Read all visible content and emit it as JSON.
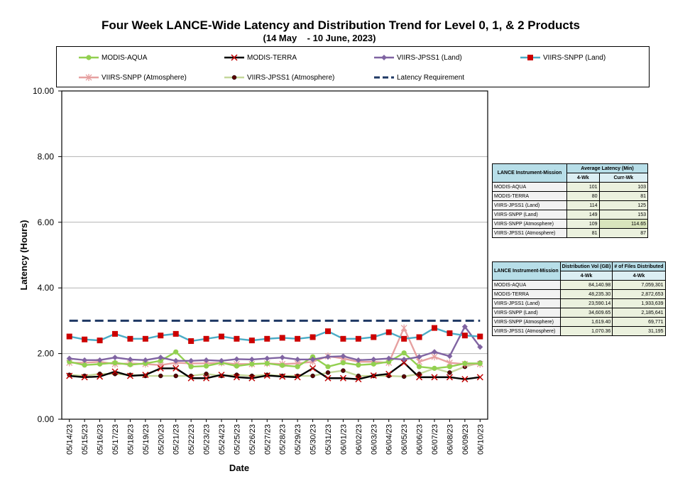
{
  "chart_data": {
    "type": "line",
    "title": "Four Week LANCE-Wide Latency and Distribution Trend for Level 0, 1, & 2 Products",
    "subtitle": "(14 May    - 10 June, 2023)",
    "xlabel": "Date",
    "ylabel": "Latency (Hours)",
    "ylim": [
      0,
      10
    ],
    "yticks": [
      "0.00",
      "2.00",
      "4.00",
      "6.00",
      "8.00",
      "10.00"
    ],
    "grid": "horizontal",
    "legend_position": "top",
    "categories": [
      "05/14/23",
      "05/15/23",
      "05/16/23",
      "05/17/23",
      "05/18/23",
      "05/19/23",
      "05/20/23",
      "05/21/23",
      "05/22/23",
      "05/23/23",
      "05/24/23",
      "05/25/23",
      "05/26/23",
      "05/27/23",
      "05/28/23",
      "05/29/23",
      "05/30/23",
      "05/31/23",
      "06/01/23",
      "06/02/23",
      "06/03/23",
      "06/04/23",
      "06/05/23",
      "06/06/23",
      "06/07/23",
      "06/08/23",
      "06/09/23",
      "06/10/23"
    ],
    "series": [
      {
        "name": "MODIS-AQUA",
        "color": "#92d050",
        "marker": "circle",
        "values": [
          1.75,
          1.65,
          1.68,
          1.72,
          1.66,
          1.7,
          1.78,
          2.05,
          1.6,
          1.62,
          1.72,
          1.62,
          1.68,
          1.7,
          1.64,
          1.6,
          1.9,
          1.6,
          1.72,
          1.65,
          1.68,
          1.75,
          2.02,
          1.6,
          1.55,
          1.6,
          1.7,
          1.7
        ]
      },
      {
        "name": "MODIS-TERRA",
        "color": "#000000",
        "marker": "x",
        "values": [
          1.32,
          1.28,
          1.3,
          1.45,
          1.32,
          1.35,
          1.55,
          1.55,
          1.25,
          1.25,
          1.35,
          1.28,
          1.25,
          1.33,
          1.3,
          1.28,
          1.55,
          1.25,
          1.25,
          1.22,
          1.33,
          1.38,
          1.72,
          1.28,
          1.28,
          1.28,
          1.22,
          1.28
        ]
      },
      {
        "name": "VIIRS-JPSS1 (Land)",
        "color": "#8064a2",
        "marker": "diamond",
        "values": [
          1.85,
          1.8,
          1.8,
          1.88,
          1.82,
          1.8,
          1.88,
          1.78,
          1.78,
          1.8,
          1.78,
          1.83,
          1.82,
          1.85,
          1.88,
          1.82,
          1.82,
          1.9,
          1.92,
          1.8,
          1.82,
          1.85,
          1.82,
          1.9,
          2.05,
          1.92,
          2.82,
          2.2
        ]
      },
      {
        "name": "VIIRS-SNPP (Land)",
        "color": "#4bacc6",
        "marker": "square",
        "marker_color": "#cc0000",
        "values": [
          2.52,
          2.43,
          2.4,
          2.6,
          2.45,
          2.45,
          2.55,
          2.6,
          2.38,
          2.45,
          2.52,
          2.45,
          2.4,
          2.45,
          2.48,
          2.45,
          2.5,
          2.68,
          2.45,
          2.45,
          2.5,
          2.65,
          2.45,
          2.5,
          2.78,
          2.62,
          2.55,
          2.52
        ]
      },
      {
        "name": "VIIRS-SNPP (Atmosphere)",
        "color": "#e6a0a0",
        "marker": "star",
        "values": [
          1.72,
          1.72,
          1.75,
          1.68,
          1.7,
          1.68,
          1.65,
          1.72,
          1.7,
          1.7,
          1.72,
          1.68,
          1.68,
          1.7,
          1.68,
          1.7,
          1.75,
          1.92,
          1.85,
          1.75,
          1.75,
          1.72,
          2.78,
          1.75,
          1.9,
          1.72,
          1.68,
          1.68
        ]
      },
      {
        "name": "VIIRS-JPSS1 (Atmosphere)",
        "color": "#c4d79b",
        "marker": "dot",
        "marker_color": "#5a0000",
        "values": [
          1.35,
          1.32,
          1.38,
          1.38,
          1.35,
          1.32,
          1.32,
          1.32,
          1.32,
          1.38,
          1.32,
          1.35,
          1.32,
          1.35,
          1.32,
          1.32,
          1.32,
          1.42,
          1.48,
          1.32,
          1.32,
          1.32,
          1.3,
          1.38,
          1.55,
          1.42,
          1.6,
          1.72
        ]
      },
      {
        "name": "Latency Requirement",
        "color": "#1f3864",
        "marker": "none",
        "dashed": true,
        "values": [
          3,
          3,
          3,
          3,
          3,
          3,
          3,
          3,
          3,
          3,
          3,
          3,
          3,
          3,
          3,
          3,
          3,
          3,
          3,
          3,
          3,
          3,
          3,
          3,
          3,
          3,
          3,
          3
        ]
      }
    ]
  },
  "table1": {
    "header_a": "LANCE Instrument-Mission",
    "header_b": "Average Latency (Min)",
    "sub_b1": "4-Wk",
    "sub_b2": "Curr-Wk",
    "rows": [
      {
        "name": "MODIS-AQUA",
        "a": "101",
        "b": "103"
      },
      {
        "name": "MODIS-TERRA",
        "a": "80",
        "b": "81"
      },
      {
        "name": "VIIRS-JPSS1 (Land)",
        "a": "114",
        "b": "125"
      },
      {
        "name": "VIIRS-SNPP (Land)",
        "a": "149",
        "b": "153"
      },
      {
        "name": "VIIRS-SNPP (Atmosphere)",
        "a": "109",
        "b": "114.65"
      },
      {
        "name": "VIIRS-JPSS1 (Atmosphere)",
        "a": "81",
        "b": "87"
      }
    ]
  },
  "table2": {
    "header_a": "LANCE Instrument-Mission",
    "header_b": "Distribution Vol (GB)",
    "header_c": "# of Files Distributed",
    "sub_b": "4-Wk",
    "sub_c": "4-Wk",
    "rows": [
      {
        "name": "MODIS-AQUA",
        "a": "84,140.98",
        "b": "7,059,301"
      },
      {
        "name": "MODIS-TERRA",
        "a": "48,235.30",
        "b": "2,872,653"
      },
      {
        "name": "VIIRS-JPSS1 (Land)",
        "a": "23,590.14",
        "b": "1,933,639"
      },
      {
        "name": "VIIRS-SNPP (Land)",
        "a": "34,609.65",
        "b": "2,185,641"
      },
      {
        "name": "VIIRS-SNPP (Atmosphere)",
        "a": "1,619.40",
        "b": "69,771"
      },
      {
        "name": "VIIRS-JPSS1 (Atmosphere)",
        "a": "1,070.36",
        "b": "31,195"
      }
    ]
  }
}
